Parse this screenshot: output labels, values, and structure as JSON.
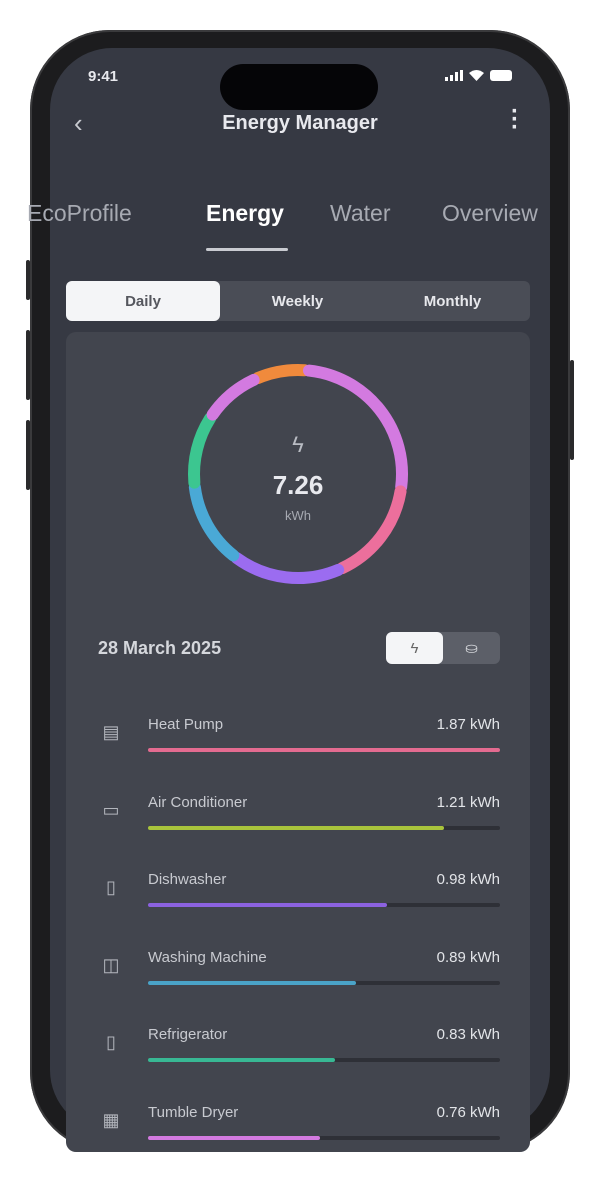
{
  "status_bar": {
    "time": "9:41"
  },
  "header": {
    "title": "Energy Manager",
    "back_icon": "chevron-left-icon",
    "menu_icon": "more-vertical-icon"
  },
  "tabs": [
    {
      "label": "EcoProfile"
    },
    {
      "label": "Energy",
      "active": true
    },
    {
      "label": "Water"
    },
    {
      "label": "Overview"
    }
  ],
  "period": {
    "options": [
      "Daily",
      "Weekly",
      "Monthly"
    ],
    "selected": "Daily"
  },
  "summary": {
    "total": "7.26",
    "unit": "kWh",
    "icon": "lightning-icon",
    "ring_segments": [
      {
        "color": "#f08a3c",
        "share": 8
      },
      {
        "color": "#d37ae0",
        "share": 26
      },
      {
        "color": "#ec6f9c",
        "share": 16
      },
      {
        "color": "#9b6cf0",
        "share": 17
      },
      {
        "color": "#4aa9d6",
        "share": 13
      },
      {
        "color": "#3cc690",
        "share": 11
      },
      {
        "color": "#d37ae0",
        "share": 9
      }
    ]
  },
  "date": "28 March 2025",
  "view_toggle": {
    "options": [
      {
        "icon": "lightning-icon",
        "active": true
      },
      {
        "icon": "coins-icon"
      }
    ]
  },
  "appliances": [
    {
      "name": "Heat Pump",
      "value": "1.87 kWh",
      "fraction": 1.0,
      "color": "#e46b90",
      "icon": "heat-pump-icon"
    },
    {
      "name": "Air Conditioner",
      "value": "1.21 kWh",
      "fraction": 0.84,
      "color": "#a9c43c",
      "icon": "air-conditioner-icon"
    },
    {
      "name": "Dishwasher",
      "value": "0.98 kWh",
      "fraction": 0.68,
      "color": "#8c62e0",
      "icon": "dishwasher-icon"
    },
    {
      "name": "Washing Machine",
      "value": "0.89 kWh",
      "fraction": 0.59,
      "color": "#4aa3c8",
      "icon": "washing-machine-icon"
    },
    {
      "name": "Refrigerator",
      "value": "0.83 kWh",
      "fraction": 0.53,
      "color": "#38b894",
      "icon": "refrigerator-icon"
    },
    {
      "name": "Tumble Dryer",
      "value": "0.76 kWh",
      "fraction": 0.49,
      "color": "#d37ae0",
      "icon": "tumble-dryer-icon"
    }
  ]
}
